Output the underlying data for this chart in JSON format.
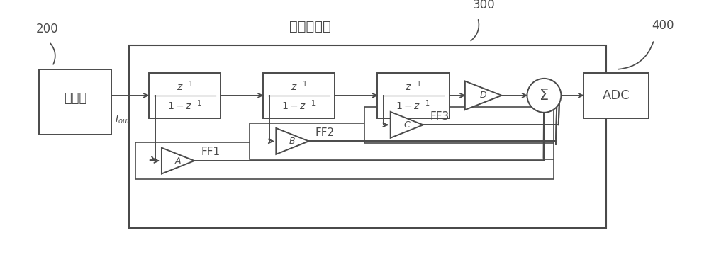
{
  "bg_color": "#ffffff",
  "line_color": "#4a4a4a",
  "label_200": "200",
  "label_300": "300",
  "label_400": "400",
  "label_jxq": "鉴相器",
  "label_huanlu": "环路滤波器",
  "label_adc": "ADC",
  "label_ff1": "FF1",
  "label_ff2": "FF2",
  "label_ff3": "FF3",
  "label_A": "A",
  "label_B": "B",
  "label_C": "C",
  "label_D": "D",
  "label_sigma": "Σ",
  "figw": 10.0,
  "figh": 3.7,
  "dpi": 100
}
